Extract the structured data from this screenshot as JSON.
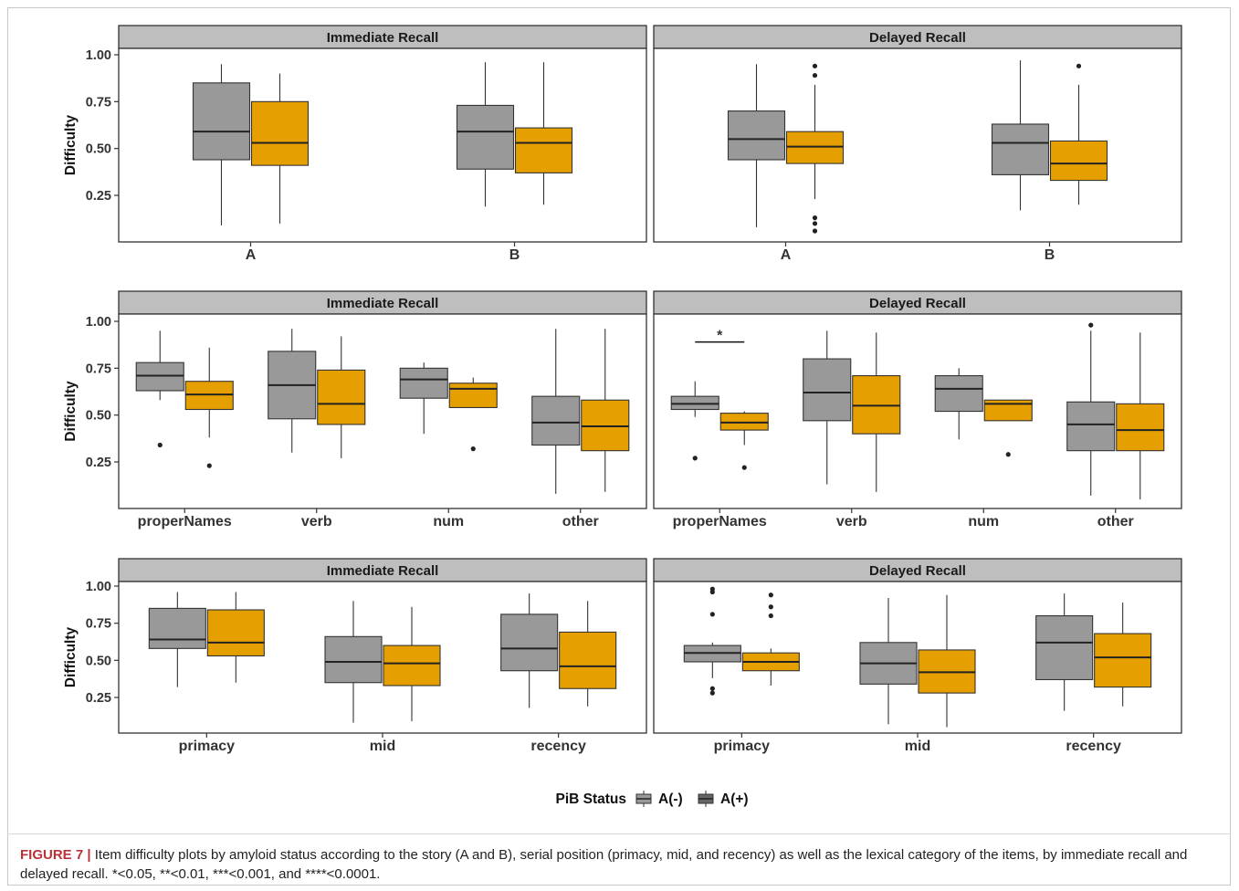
{
  "colors": {
    "A_neg": "#999999",
    "A_pos": "#E69F00",
    "strip_bg": "#BEBEBE",
    "box_line": "#333333"
  },
  "legend": {
    "title": "PiB Status",
    "items": [
      {
        "label": "A(-)",
        "color": "#999999"
      },
      {
        "label": "A(+)",
        "color": "#666666"
      }
    ]
  },
  "caption": {
    "label": "FIGURE 7",
    "separator": "|",
    "text": "Item difficulty plots by amyloid status according to the story (A and B), serial position (primacy, mid, and recency) as well as the lexical category of the items, by immediate recall and delayed recall. *<0.05, **<0.01, ***<0.001, and ****<0.0001."
  },
  "chart_data": [
    {
      "type": "boxplot",
      "title": "Immediate Recall",
      "ylabel": "Difficulty",
      "ylim": [
        0,
        1.0
      ],
      "yticks": [
        "1.00",
        "0.75",
        "0.50",
        "0.25"
      ],
      "categories": [
        "A",
        "B"
      ],
      "series": [
        {
          "group": "A(-)",
          "boxes": [
            {
              "min": 0.09,
              "q1": 0.44,
              "median": 0.59,
              "q3": 0.85,
              "max": 0.95,
              "outliers": []
            },
            {
              "min": 0.19,
              "q1": 0.39,
              "median": 0.59,
              "q3": 0.73,
              "max": 0.96,
              "outliers": []
            }
          ]
        },
        {
          "group": "A(+)",
          "boxes": [
            {
              "min": 0.1,
              "q1": 0.41,
              "median": 0.53,
              "q3": 0.75,
              "max": 0.9,
              "outliers": []
            },
            {
              "min": 0.2,
              "q1": 0.37,
              "median": 0.53,
              "q3": 0.61,
              "max": 0.96,
              "outliers": []
            }
          ]
        }
      ]
    },
    {
      "type": "boxplot",
      "title": "Delayed Recall",
      "ylabel": "",
      "ylim": [
        0,
        1.0
      ],
      "yticks": [],
      "categories": [
        "A",
        "B"
      ],
      "series": [
        {
          "group": "A(-)",
          "boxes": [
            {
              "min": 0.08,
              "q1": 0.44,
              "median": 0.55,
              "q3": 0.7,
              "max": 0.95,
              "outliers": []
            },
            {
              "min": 0.17,
              "q1": 0.36,
              "median": 0.53,
              "q3": 0.63,
              "max": 0.97,
              "outliers": []
            }
          ]
        },
        {
          "group": "A(+)",
          "boxes": [
            {
              "min": 0.23,
              "q1": 0.42,
              "median": 0.51,
              "q3": 0.59,
              "max": 0.84,
              "outliers": [
                0.94,
                0.89,
                0.13,
                0.1,
                0.06
              ]
            },
            {
              "min": 0.2,
              "q1": 0.33,
              "median": 0.42,
              "q3": 0.54,
              "max": 0.84,
              "outliers": [
                0.94
              ]
            }
          ]
        }
      ]
    },
    {
      "type": "boxplot",
      "title": "Immediate Recall",
      "ylabel": "Difficulty",
      "ylim": [
        0,
        1.0
      ],
      "yticks": [
        "1.00",
        "0.75",
        "0.50",
        "0.25"
      ],
      "categories": [
        "properNames",
        "verb",
        "num",
        "other"
      ],
      "series": [
        {
          "group": "A(-)",
          "boxes": [
            {
              "min": 0.58,
              "q1": 0.63,
              "median": 0.71,
              "q3": 0.78,
              "max": 0.95,
              "outliers": [
                0.34
              ]
            },
            {
              "min": 0.3,
              "q1": 0.48,
              "median": 0.66,
              "q3": 0.84,
              "max": 0.96,
              "outliers": []
            },
            {
              "min": 0.4,
              "q1": 0.59,
              "median": 0.69,
              "q3": 0.75,
              "max": 0.78,
              "outliers": []
            },
            {
              "min": 0.08,
              "q1": 0.34,
              "median": 0.46,
              "q3": 0.6,
              "max": 0.96,
              "outliers": []
            }
          ]
        },
        {
          "group": "A(+)",
          "boxes": [
            {
              "min": 0.38,
              "q1": 0.53,
              "median": 0.61,
              "q3": 0.68,
              "max": 0.86,
              "outliers": [
                0.23
              ]
            },
            {
              "min": 0.27,
              "q1": 0.45,
              "median": 0.56,
              "q3": 0.74,
              "max": 0.92,
              "outliers": []
            },
            {
              "min": 0.54,
              "q1": 0.54,
              "median": 0.64,
              "q3": 0.67,
              "max": 0.7,
              "outliers": [
                0.32
              ]
            },
            {
              "min": 0.09,
              "q1": 0.31,
              "median": 0.44,
              "q3": 0.58,
              "max": 0.96,
              "outliers": []
            }
          ]
        }
      ]
    },
    {
      "type": "boxplot",
      "title": "Delayed Recall",
      "ylabel": "",
      "ylim": [
        0,
        1.0
      ],
      "yticks": [],
      "categories": [
        "properNames",
        "verb",
        "num",
        "other"
      ],
      "annotation": {
        "text": "*",
        "category": "properNames",
        "y": 0.89
      },
      "series": [
        {
          "group": "A(-)",
          "boxes": [
            {
              "min": 0.49,
              "q1": 0.53,
              "median": 0.56,
              "q3": 0.6,
              "max": 0.68,
              "outliers": [
                0.27
              ]
            },
            {
              "min": 0.13,
              "q1": 0.47,
              "median": 0.62,
              "q3": 0.8,
              "max": 0.95,
              "outliers": []
            },
            {
              "min": 0.37,
              "q1": 0.52,
              "median": 0.64,
              "q3": 0.71,
              "max": 0.75,
              "outliers": []
            },
            {
              "min": 0.07,
              "q1": 0.31,
              "median": 0.45,
              "q3": 0.57,
              "max": 0.95,
              "outliers": [
                0.98
              ]
            }
          ]
        },
        {
          "group": "A(+)",
          "boxes": [
            {
              "min": 0.34,
              "q1": 0.42,
              "median": 0.46,
              "q3": 0.51,
              "max": 0.52,
              "outliers": [
                0.22
              ]
            },
            {
              "min": 0.09,
              "q1": 0.4,
              "median": 0.55,
              "q3": 0.71,
              "max": 0.94,
              "outliers": []
            },
            {
              "min": 0.47,
              "q1": 0.47,
              "median": 0.56,
              "q3": 0.58,
              "max": 0.58,
              "outliers": [
                0.29
              ]
            },
            {
              "min": 0.05,
              "q1": 0.31,
              "median": 0.42,
              "q3": 0.56,
              "max": 0.94,
              "outliers": []
            }
          ]
        }
      ]
    },
    {
      "type": "boxplot",
      "title": "Immediate Recall",
      "ylabel": "Difficulty",
      "ylim": [
        0,
        1.0
      ],
      "yticks": [
        "1.00",
        "0.75",
        "0.50",
        "0.25"
      ],
      "categories": [
        "primacy",
        "mid",
        "recency"
      ],
      "series": [
        {
          "group": "A(-)",
          "boxes": [
            {
              "min": 0.32,
              "q1": 0.58,
              "median": 0.64,
              "q3": 0.85,
              "max": 0.96,
              "outliers": []
            },
            {
              "min": 0.08,
              "q1": 0.35,
              "median": 0.49,
              "q3": 0.66,
              "max": 0.9,
              "outliers": []
            },
            {
              "min": 0.18,
              "q1": 0.43,
              "median": 0.58,
              "q3": 0.81,
              "max": 0.95,
              "outliers": []
            }
          ]
        },
        {
          "group": "A(+)",
          "boxes": [
            {
              "min": 0.35,
              "q1": 0.53,
              "median": 0.62,
              "q3": 0.84,
              "max": 0.96,
              "outliers": []
            },
            {
              "min": 0.09,
              "q1": 0.33,
              "median": 0.48,
              "q3": 0.6,
              "max": 0.86,
              "outliers": []
            },
            {
              "min": 0.19,
              "q1": 0.31,
              "median": 0.46,
              "q3": 0.69,
              "max": 0.9,
              "outliers": []
            }
          ]
        }
      ]
    },
    {
      "type": "boxplot",
      "title": "Delayed Recall",
      "ylabel": "",
      "ylim": [
        0,
        1.0
      ],
      "yticks": [],
      "categories": [
        "primacy",
        "mid",
        "recency"
      ],
      "series": [
        {
          "group": "A(-)",
          "boxes": [
            {
              "min": 0.38,
              "q1": 0.49,
              "median": 0.55,
              "q3": 0.6,
              "max": 0.62,
              "outliers": [
                0.98,
                0.96,
                0.81,
                0.31,
                0.28
              ]
            },
            {
              "min": 0.07,
              "q1": 0.34,
              "median": 0.48,
              "q3": 0.62,
              "max": 0.92,
              "outliers": []
            },
            {
              "min": 0.16,
              "q1": 0.37,
              "median": 0.62,
              "q3": 0.8,
              "max": 0.95,
              "outliers": []
            }
          ]
        },
        {
          "group": "A(+)",
          "boxes": [
            {
              "min": 0.33,
              "q1": 0.43,
              "median": 0.49,
              "q3": 0.55,
              "max": 0.58,
              "outliers": [
                0.94,
                0.86,
                0.8
              ]
            },
            {
              "min": 0.05,
              "q1": 0.28,
              "median": 0.42,
              "q3": 0.57,
              "max": 0.94,
              "outliers": []
            },
            {
              "min": 0.19,
              "q1": 0.32,
              "median": 0.52,
              "q3": 0.68,
              "max": 0.89,
              "outliers": []
            }
          ]
        }
      ]
    }
  ]
}
